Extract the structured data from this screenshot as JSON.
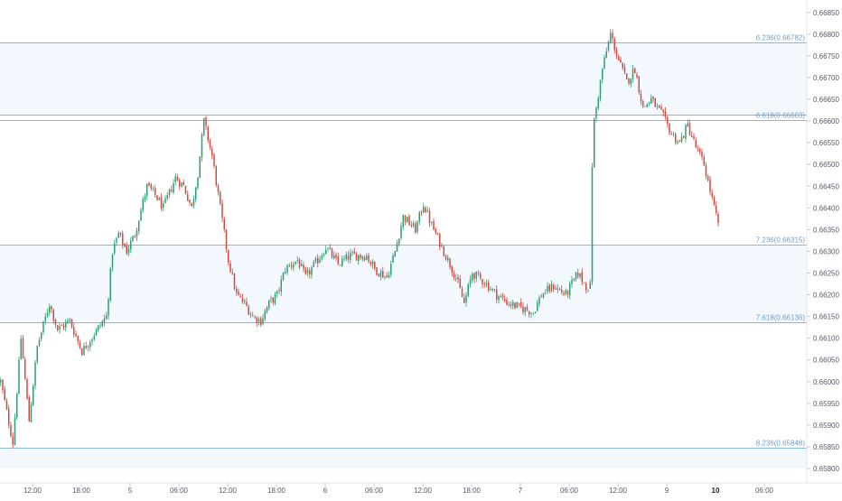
{
  "chart_data": {
    "type": "candlestick",
    "pair_label": "",
    "ylim": [
      0.658,
      0.6686
    ],
    "y_ticks": [
      "0.66850",
      "0.66800",
      "0.66750",
      "0.66700",
      "0.66650",
      "0.66600",
      "0.66550",
      "0.66500",
      "0.66450",
      "0.66400",
      "0.66350",
      "0.66300",
      "0.66250",
      "0.66200",
      "0.66150",
      "0.66100",
      "0.66050",
      "0.66000",
      "0.65950",
      "0.65900",
      "0.65850",
      "0.65800"
    ],
    "x_ticks": [
      {
        "label": "12:00",
        "bar": 16,
        "bold": false
      },
      {
        "label": "18:00",
        "bar": 40,
        "bold": false
      },
      {
        "label": "5",
        "bar": 64,
        "bold": false
      },
      {
        "label": "06:00",
        "bar": 88,
        "bold": false
      },
      {
        "label": "12:00",
        "bar": 112,
        "bold": false
      },
      {
        "label": "18:00",
        "bar": 136,
        "bold": false
      },
      {
        "label": "6",
        "bar": 160,
        "bold": false
      },
      {
        "label": "06:00",
        "bar": 184,
        "bold": false
      },
      {
        "label": "12:00",
        "bar": 208,
        "bold": false
      },
      {
        "label": "18:00",
        "bar": 232,
        "bold": false
      },
      {
        "label": "7",
        "bar": 256,
        "bold": false
      },
      {
        "label": "06:00",
        "bar": 280,
        "bold": false
      },
      {
        "label": "12:00",
        "bar": 304,
        "bold": false
      },
      {
        "label": "9",
        "bar": 328,
        "bold": false
      },
      {
        "label": "10",
        "bar": 352,
        "bold": true
      },
      {
        "label": "06:00",
        "bar": 376,
        "bold": false
      }
    ],
    "levels": [
      {
        "label": "6.236(0.66782)",
        "value": 0.66782
      },
      {
        "label": "6.618(0.66603)",
        "value": 0.66603
      },
      {
        "label": "",
        "value": 0.66614
      },
      {
        "label": "7.236(0.66315)",
        "value": 0.66315
      },
      {
        "label": "7.618(0.66136)",
        "value": 0.66136
      },
      {
        "label": "8.236(0.65848)",
        "value": 0.65848
      }
    ],
    "bands": [
      {
        "from": 0.66614,
        "to": 0.66782
      },
      {
        "from": 0.66136,
        "to": 0.66315
      },
      {
        "from": 0.658,
        "to": 0.65848
      }
    ],
    "anchors": [
      [
        0,
        0.66
      ],
      [
        6,
        0.6586
      ],
      [
        10,
        0.661
      ],
      [
        14,
        0.6591
      ],
      [
        18,
        0.6608
      ],
      [
        24,
        0.6618
      ],
      [
        28,
        0.6612
      ],
      [
        34,
        0.6614
      ],
      [
        40,
        0.6607
      ],
      [
        46,
        0.6611
      ],
      [
        52,
        0.6615
      ],
      [
        55,
        0.663
      ],
      [
        58,
        0.6634
      ],
      [
        62,
        0.663
      ],
      [
        66,
        0.6634
      ],
      [
        72,
        0.6645
      ],
      [
        76,
        0.6643
      ],
      [
        80,
        0.664
      ],
      [
        86,
        0.6647
      ],
      [
        90,
        0.6645
      ],
      [
        94,
        0.664
      ],
      [
        97,
        0.6648
      ],
      [
        100,
        0.666
      ],
      [
        104,
        0.6652
      ],
      [
        108,
        0.664
      ],
      [
        112,
        0.6628
      ],
      [
        116,
        0.662
      ],
      [
        120,
        0.6618
      ],
      [
        124,
        0.6615
      ],
      [
        128,
        0.6614
      ],
      [
        132,
        0.6618
      ],
      [
        136,
        0.662
      ],
      [
        140,
        0.6626
      ],
      [
        146,
        0.6628
      ],
      [
        150,
        0.6624
      ],
      [
        156,
        0.6628
      ],
      [
        160,
        0.6631
      ],
      [
        166,
        0.6627
      ],
      [
        172,
        0.6629
      ],
      [
        180,
        0.6629
      ],
      [
        184,
        0.6626
      ],
      [
        190,
        0.6624
      ],
      [
        194,
        0.663
      ],
      [
        198,
        0.6638
      ],
      [
        204,
        0.6635
      ],
      [
        208,
        0.6641
      ],
      [
        212,
        0.6636
      ],
      [
        216,
        0.6632
      ],
      [
        220,
        0.6628
      ],
      [
        224,
        0.6624
      ],
      [
        228,
        0.6618
      ],
      [
        232,
        0.6625
      ],
      [
        238,
        0.6623
      ],
      [
        244,
        0.662
      ],
      [
        250,
        0.6618
      ],
      [
        256,
        0.6617
      ],
      [
        262,
        0.6616
      ],
      [
        266,
        0.662
      ],
      [
        272,
        0.6622
      ],
      [
        278,
        0.662
      ],
      [
        284,
        0.6625
      ],
      [
        288,
        0.6622
      ],
      [
        290,
        0.6622
      ],
      [
        291,
        0.665
      ],
      [
        292,
        0.666
      ],
      [
        296,
        0.6672
      ],
      [
        300,
        0.668
      ],
      [
        304,
        0.6674
      ],
      [
        308,
        0.6669
      ],
      [
        312,
        0.6672
      ],
      [
        316,
        0.6663
      ],
      [
        320,
        0.6665
      ],
      [
        326,
        0.6661
      ],
      [
        330,
        0.6657
      ],
      [
        334,
        0.6655
      ],
      [
        338,
        0.6659
      ],
      [
        342,
        0.6654
      ],
      [
        346,
        0.665
      ],
      [
        350,
        0.6642
      ],
      [
        353,
        0.6636
      ]
    ],
    "colors": {
      "up": "#2e9e72",
      "down": "#d7473f",
      "level_line": "#8bb8da",
      "band_fill": "#f2f8fd",
      "label_text": "#6d9fca",
      "axis_text": "#555b66",
      "axis_bold": "#222222"
    }
  }
}
